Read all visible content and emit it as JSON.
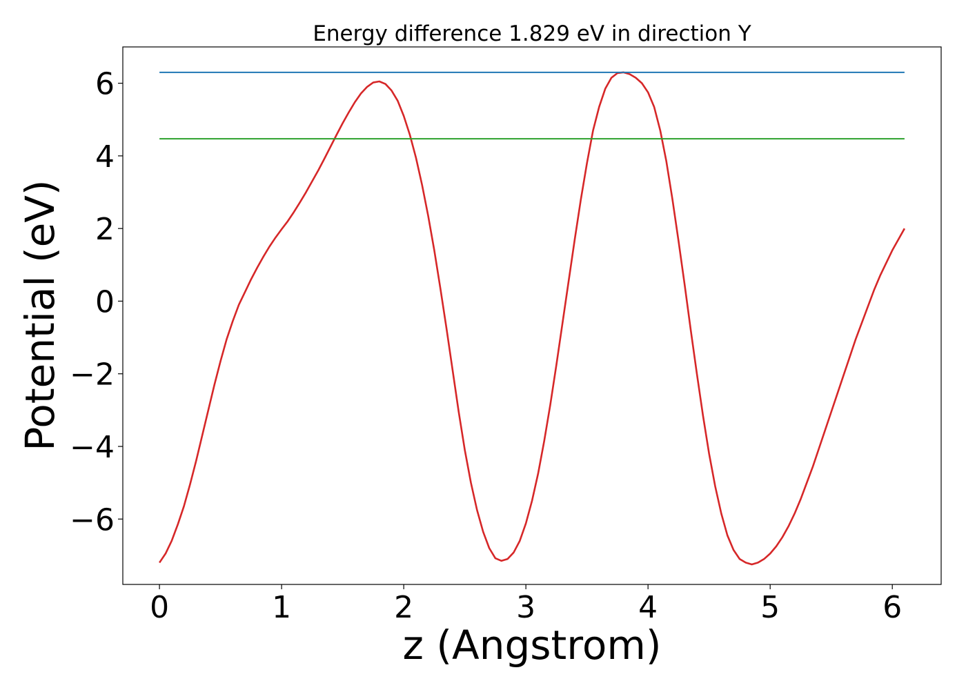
{
  "chart_data": {
    "type": "line",
    "title": "Energy difference 1.829 eV in direction Y",
    "xlabel": "z (Angstrom)",
    "ylabel": "Potential (eV)",
    "xlim": [
      -0.3,
      6.4
    ],
    "ylim": [
      -7.8,
      7.0
    ],
    "xticks": [
      0,
      1,
      2,
      3,
      4,
      5,
      6
    ],
    "xtick_labels": [
      "0",
      "1",
      "2",
      "3",
      "4",
      "5",
      "6"
    ],
    "yticks": [
      -6,
      -4,
      -2,
      0,
      2,
      4,
      6
    ],
    "ytick_labels": [
      "−6",
      "−4",
      "−2",
      "0",
      "2",
      "4",
      "6"
    ],
    "grid": false,
    "series": [
      {
        "color": "#d62728",
        "x": [
          0.0,
          0.05,
          0.1,
          0.15,
          0.2,
          0.25,
          0.3,
          0.35,
          0.4,
          0.45,
          0.5,
          0.55,
          0.6,
          0.65,
          0.7,
          0.75,
          0.8,
          0.85,
          0.9,
          0.95,
          1.0,
          1.05,
          1.1,
          1.15,
          1.2,
          1.25,
          1.3,
          1.35,
          1.4,
          1.45,
          1.5,
          1.55,
          1.6,
          1.65,
          1.7,
          1.75,
          1.8,
          1.85,
          1.9,
          1.95,
          2.0,
          2.05,
          2.1,
          2.15,
          2.2,
          2.25,
          2.3,
          2.35,
          2.4,
          2.45,
          2.5,
          2.55,
          2.6,
          2.65,
          2.7,
          2.75,
          2.8,
          2.85,
          2.9,
          2.95,
          3.0,
          3.05,
          3.1,
          3.15,
          3.2,
          3.25,
          3.3,
          3.35,
          3.4,
          3.45,
          3.5,
          3.55,
          3.6,
          3.65,
          3.7,
          3.75,
          3.8,
          3.85,
          3.9,
          3.95,
          4.0,
          4.05,
          4.1,
          4.15,
          4.2,
          4.25,
          4.3,
          4.35,
          4.4,
          4.45,
          4.5,
          4.55,
          4.6,
          4.65,
          4.7,
          4.75,
          4.8,
          4.85,
          4.9,
          4.95,
          5.0,
          5.05,
          5.1,
          5.15,
          5.2,
          5.25,
          5.3,
          5.35,
          5.4,
          5.45,
          5.5,
          5.55,
          5.6,
          5.65,
          5.7,
          5.75,
          5.8,
          5.85,
          5.9,
          5.95,
          6.0,
          6.05,
          6.1
        ],
        "y": [
          -7.2,
          -6.95,
          -6.6,
          -6.15,
          -5.65,
          -5.05,
          -4.4,
          -3.7,
          -3.0,
          -2.3,
          -1.65,
          -1.05,
          -0.55,
          -0.1,
          0.25,
          0.6,
          0.92,
          1.22,
          1.5,
          1.75,
          1.98,
          2.2,
          2.45,
          2.72,
          3.0,
          3.3,
          3.6,
          3.92,
          4.25,
          4.58,
          4.9,
          5.2,
          5.48,
          5.72,
          5.9,
          6.02,
          6.05,
          5.98,
          5.8,
          5.52,
          5.1,
          4.58,
          3.95,
          3.2,
          2.35,
          1.4,
          0.35,
          -0.75,
          -1.9,
          -3.05,
          -4.1,
          -5.0,
          -5.75,
          -6.35,
          -6.8,
          -7.08,
          -7.15,
          -7.1,
          -6.92,
          -6.6,
          -6.12,
          -5.5,
          -4.75,
          -3.85,
          -2.85,
          -1.75,
          -0.6,
          0.55,
          1.7,
          2.8,
          3.8,
          4.7,
          5.35,
          5.85,
          6.15,
          6.28,
          6.3,
          6.25,
          6.15,
          6.0,
          5.75,
          5.35,
          4.7,
          3.85,
          2.8,
          1.65,
          0.45,
          -0.8,
          -2.0,
          -3.15,
          -4.2,
          -5.1,
          -5.85,
          -6.45,
          -6.85,
          -7.1,
          -7.2,
          -7.25,
          -7.2,
          -7.1,
          -6.95,
          -6.75,
          -6.5,
          -6.2,
          -5.85,
          -5.45,
          -5.0,
          -4.55,
          -4.05,
          -3.55,
          -3.05,
          -2.55,
          -2.05,
          -1.55,
          -1.05,
          -0.6,
          -0.15,
          0.3,
          0.7,
          1.05,
          1.4,
          1.7,
          2.0
        ]
      },
      {
        "color": "#1f77b4",
        "x": [
          0.0,
          6.1
        ],
        "y": [
          6.3,
          6.3
        ]
      },
      {
        "color": "#2ca02c",
        "x": [
          0.0,
          6.1
        ],
        "y": [
          4.47,
          4.47
        ]
      }
    ]
  }
}
